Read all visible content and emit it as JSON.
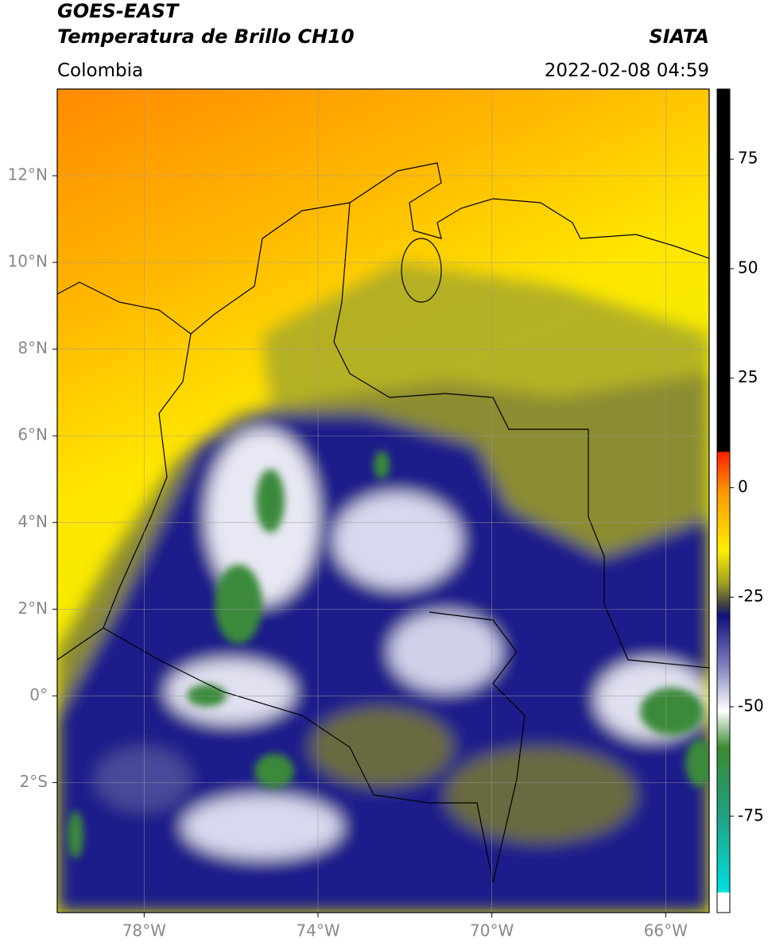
{
  "header": {
    "satellite": "GOES-EAST",
    "product": "Temperatura de Brillo CH10",
    "source": "SIATA",
    "region": "Colombia",
    "datetime": "2022-02-08 04:59"
  },
  "map": {
    "xlim": [
      -80,
      -65
    ],
    "ylim": [
      -5,
      14
    ],
    "grid": true,
    "xticks": [
      {
        "value": -78,
        "label": "78°W"
      },
      {
        "value": -74,
        "label": "74°W"
      },
      {
        "value": -70,
        "label": "70°W"
      },
      {
        "value": -66,
        "label": "66°W"
      }
    ],
    "yticks": [
      {
        "value": 12,
        "label": "12°N"
      },
      {
        "value": 10,
        "label": "10°N"
      },
      {
        "value": 8,
        "label": "8°N"
      },
      {
        "value": 6,
        "label": "6°N"
      },
      {
        "value": 4,
        "label": "4°N"
      },
      {
        "value": 2,
        "label": "2°N"
      },
      {
        "value": 0,
        "label": "0°"
      },
      {
        "value": -2,
        "label": "2°S"
      }
    ]
  },
  "colorbar": {
    "lim": [
      -97,
      91
    ],
    "ticks": [
      75,
      50,
      25,
      0,
      -25,
      -50,
      -75
    ]
  }
}
